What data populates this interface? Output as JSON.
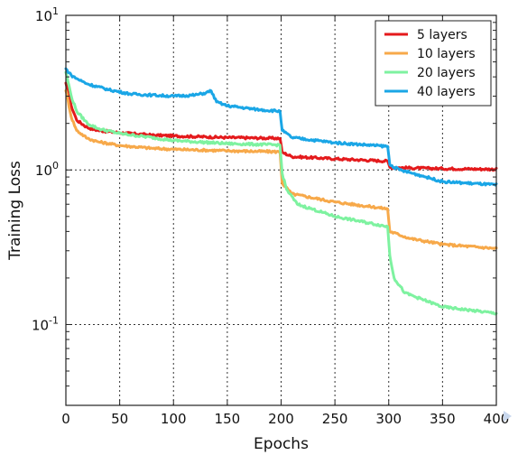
{
  "chart_data": {
    "type": "line",
    "title": "",
    "xlabel": "Epochs",
    "ylabel": "Training Loss",
    "xlim": [
      0,
      400
    ],
    "ylim": [
      0.03,
      10
    ],
    "yscale": "log",
    "grid": true,
    "legend_position": "top-right",
    "x_ticks": [
      {
        "value": 0,
        "label": "0"
      },
      {
        "value": 50,
        "label": "50"
      },
      {
        "value": 100,
        "label": "100"
      },
      {
        "value": 150,
        "label": "150"
      },
      {
        "value": 200,
        "label": "200"
      },
      {
        "value": 250,
        "label": "250"
      },
      {
        "value": 300,
        "label": "300"
      },
      {
        "value": 350,
        "label": "350"
      },
      {
        "value": 400,
        "label": "400"
      }
    ],
    "y_ticks": [
      {
        "value": 10,
        "base": "10",
        "exp": "1"
      },
      {
        "value": 1,
        "base": "10",
        "exp": "0"
      },
      {
        "value": 0.1,
        "base": "10",
        "exp": "-1"
      }
    ],
    "series": [
      {
        "name": "5 layers",
        "color": "#e41a1c",
        "x": [
          0,
          5,
          10,
          20,
          30,
          50,
          80,
          100,
          150,
          199,
          201,
          210,
          250,
          299,
          301,
          320,
          350,
          400
        ],
        "y": [
          3.6,
          2.6,
          2.1,
          1.88,
          1.8,
          1.74,
          1.68,
          1.66,
          1.62,
          1.6,
          1.3,
          1.22,
          1.18,
          1.14,
          1.04,
          1.03,
          1.02,
          1.01
        ]
      },
      {
        "name": "10 layers",
        "color": "#f7a94a",
        "x": [
          0,
          5,
          10,
          20,
          30,
          50,
          80,
          100,
          150,
          199,
          201,
          210,
          250,
          299,
          301,
          320,
          350,
          400
        ],
        "y": [
          3.3,
          2.2,
          1.8,
          1.6,
          1.52,
          1.44,
          1.38,
          1.36,
          1.33,
          1.31,
          0.82,
          0.7,
          0.62,
          0.56,
          0.4,
          0.36,
          0.33,
          0.31
        ]
      },
      {
        "name": "20 layers",
        "color": "#7ef2a0",
        "x": [
          0,
          5,
          10,
          20,
          30,
          50,
          80,
          100,
          150,
          199,
          201,
          205,
          215,
          250,
          299,
          301,
          305,
          315,
          350,
          400
        ],
        "y": [
          4.3,
          3.0,
          2.4,
          2.0,
          1.85,
          1.72,
          1.62,
          1.55,
          1.48,
          1.45,
          0.95,
          0.75,
          0.6,
          0.5,
          0.43,
          0.28,
          0.2,
          0.16,
          0.13,
          0.118
        ]
      },
      {
        "name": "40 layers",
        "color": "#1aa6e6",
        "x": [
          0,
          5,
          10,
          20,
          40,
          60,
          80,
          100,
          120,
          130,
          135,
          140,
          150,
          180,
          199,
          201,
          210,
          250,
          299,
          301,
          310,
          330,
          350,
          400
        ],
        "y": [
          4.5,
          4.1,
          3.9,
          3.6,
          3.3,
          3.1,
          3.05,
          3.0,
          3.05,
          3.15,
          3.25,
          2.75,
          2.6,
          2.45,
          2.4,
          1.8,
          1.62,
          1.5,
          1.42,
          1.08,
          1.0,
          0.92,
          0.84,
          0.8
        ]
      }
    ]
  }
}
